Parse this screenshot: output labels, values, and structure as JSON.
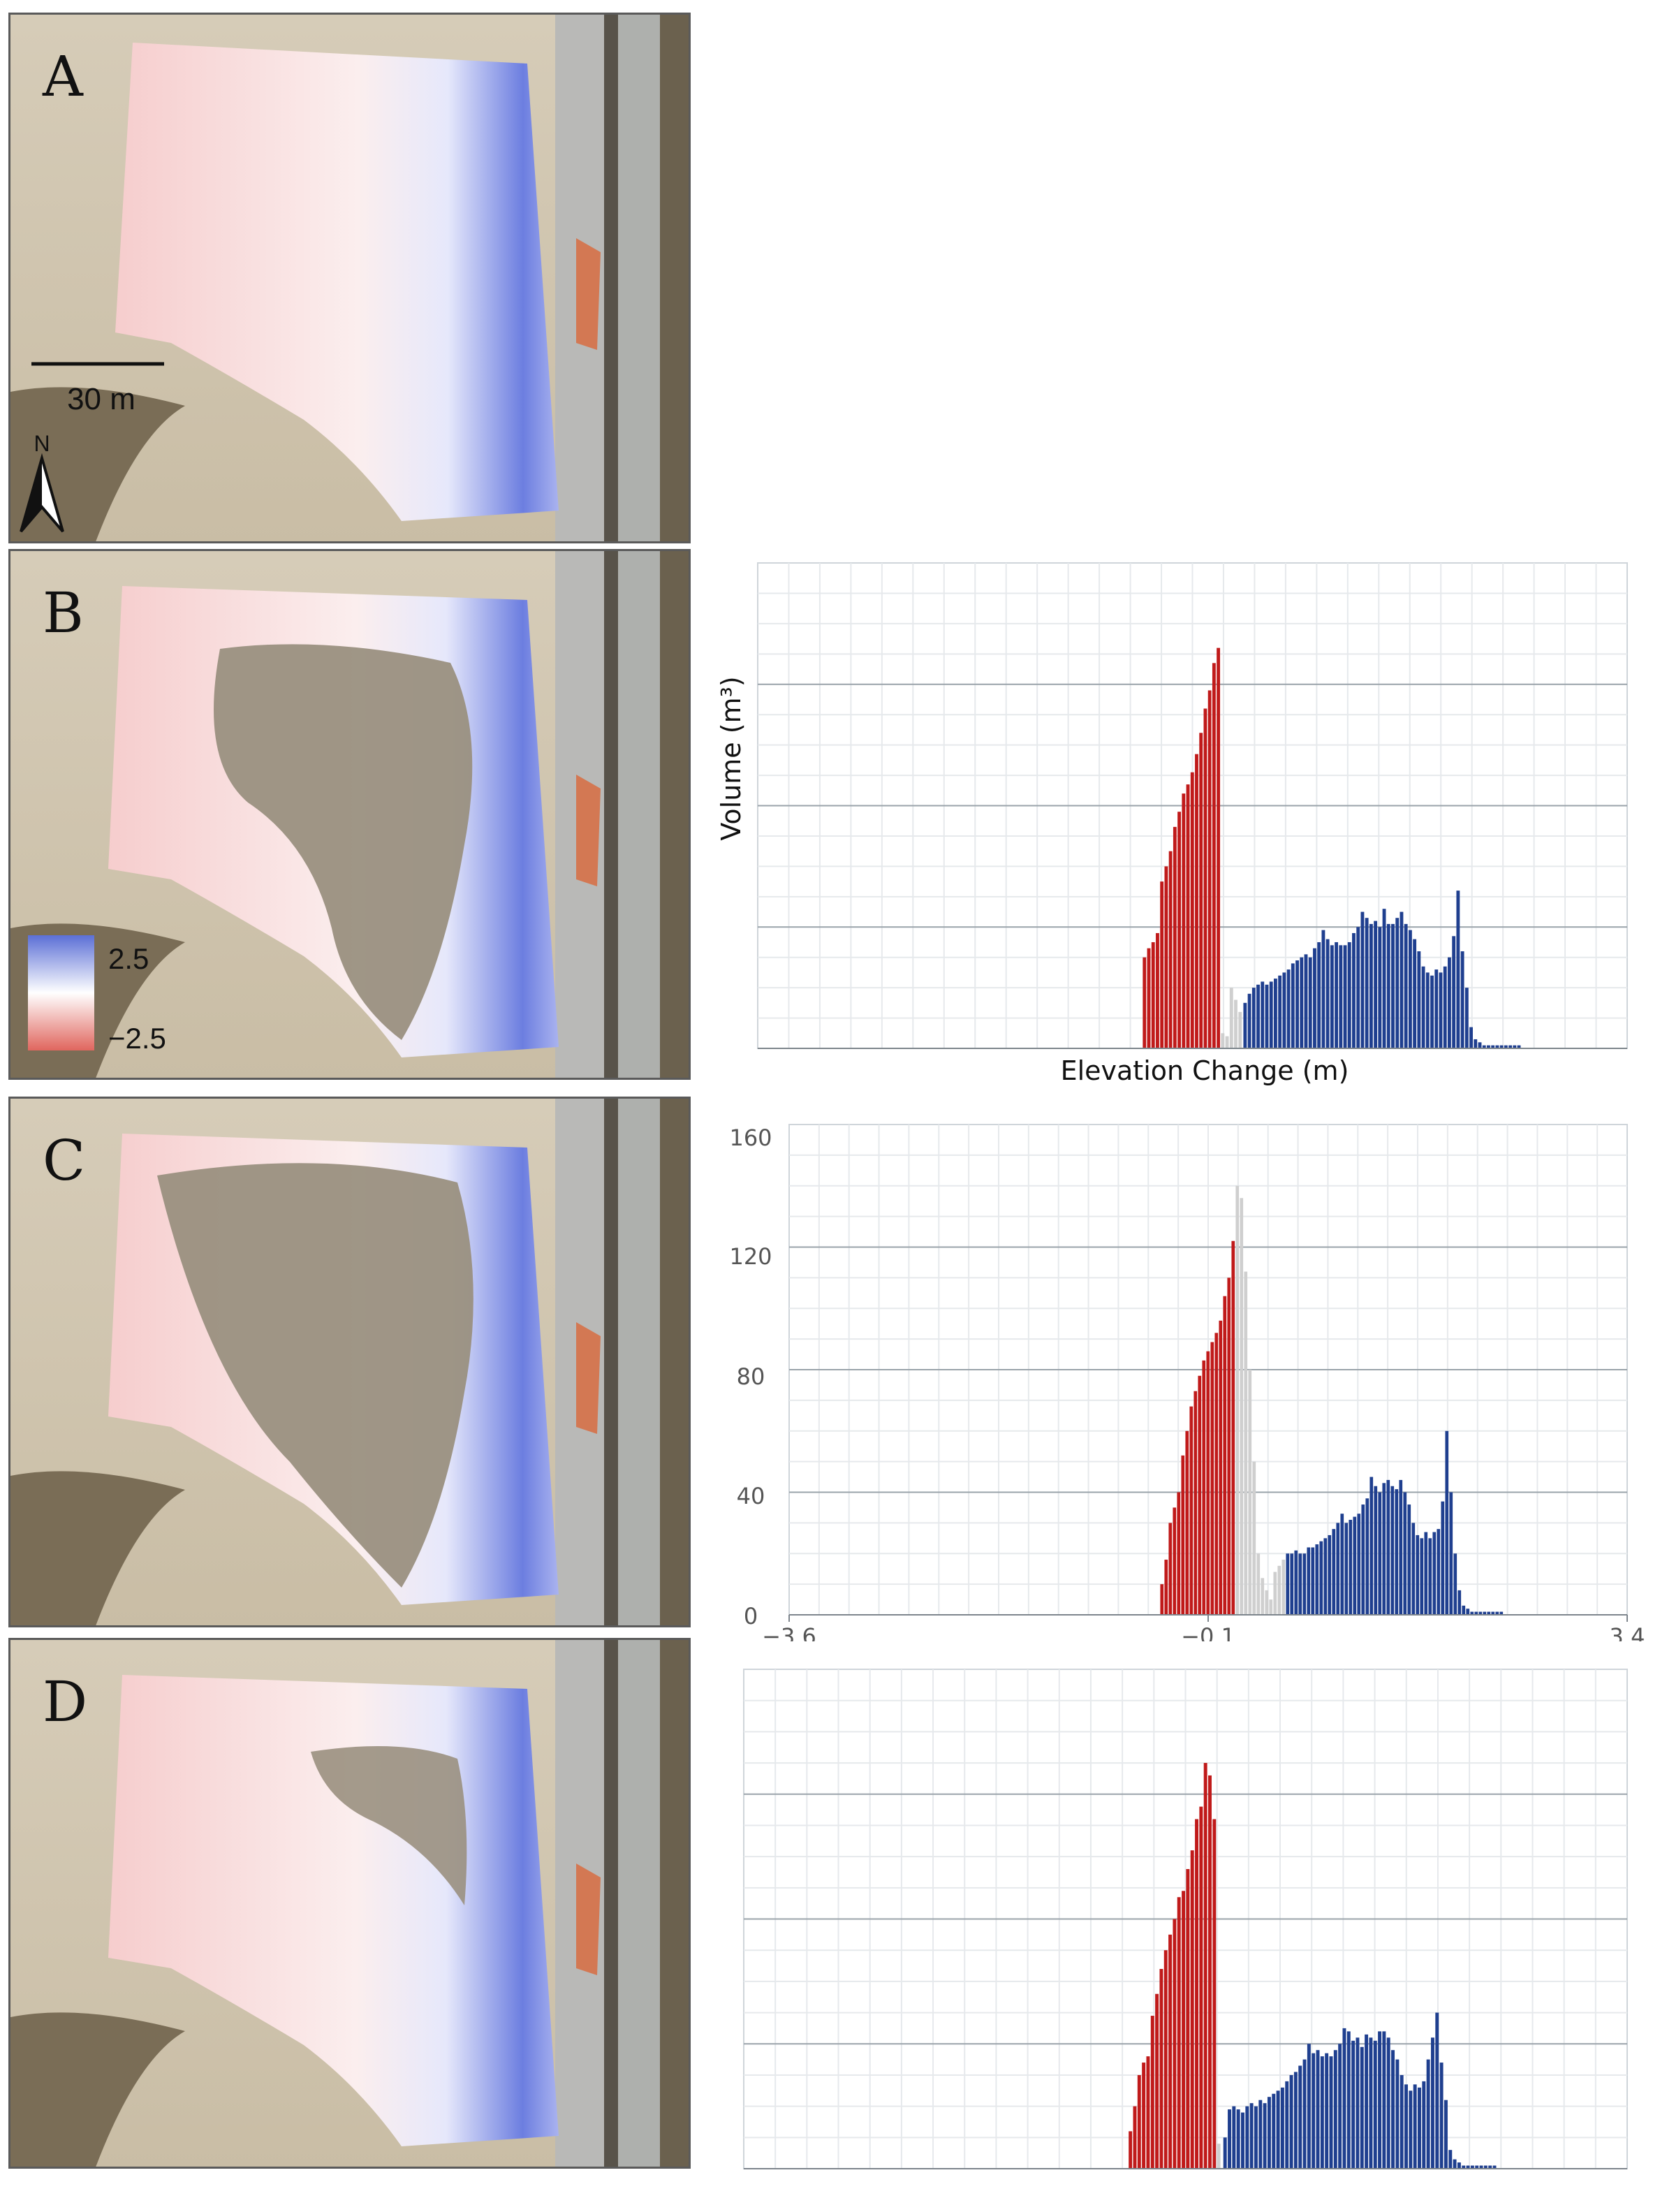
{
  "panels": [
    {
      "id": "A",
      "label": "A"
    },
    {
      "id": "B",
      "label": "B"
    },
    {
      "id": "C",
      "label": "C"
    },
    {
      "id": "D",
      "label": "D"
    }
  ],
  "scale_bar": {
    "label": "30 m"
  },
  "north_arrow": {
    "label": "N"
  },
  "colorbar": {
    "max_label": "2.5",
    "min_label": "−2.5",
    "colors": [
      "#5b6fd6",
      "#ffffff",
      "#e0665e"
    ]
  },
  "colors": {
    "erosion": "#c01a1a",
    "deposition": "#1f3f8f",
    "not_significant": "#cfcfcf",
    "grid": "#e6e9ec",
    "grid_major": "#9aa3aa"
  },
  "chart_data": [
    {
      "panel": "B",
      "type": "bar",
      "xlabel": "Elevation Change (m)",
      "ylabel": "Volume (m³)",
      "xlim": [
        -3.6,
        3.4
      ],
      "ylim": [
        0,
        160
      ],
      "bin_width": 0.035,
      "erosion": {
        "x_start": -0.5,
        "values": [
          30,
          33,
          35,
          38,
          55,
          60,
          65,
          73,
          78,
          84,
          87,
          91,
          97,
          104,
          112,
          118,
          127,
          132
        ]
      },
      "not_significant": {
        "x_start": 0.13,
        "values": [
          5,
          4,
          20,
          16,
          12
        ]
      },
      "deposition": {
        "x_start": 0.31,
        "values": [
          15,
          18,
          20,
          21,
          22,
          21,
          22,
          23,
          24,
          25,
          26,
          28,
          29,
          30,
          31,
          30,
          33,
          35,
          39,
          36,
          34,
          35,
          34,
          34,
          35,
          38,
          40,
          45,
          43,
          41,
          42,
          40,
          46,
          41,
          41,
          43,
          45,
          41,
          39,
          36,
          32,
          27,
          25,
          24,
          26,
          25,
          27,
          30,
          37,
          52,
          32,
          20,
          7,
          3,
          2,
          1,
          1,
          1,
          1,
          1,
          1,
          1,
          1,
          1
        ]
      }
    },
    {
      "panel": "C",
      "type": "bar",
      "xlim": [
        -3.6,
        3.4
      ],
      "ylim": [
        0,
        160
      ],
      "x_ticks": [
        "−3.6",
        "−0.1",
        "3.4"
      ],
      "y_ticks": [
        "0",
        "40",
        "80",
        "120",
        "160"
      ],
      "bin_width": 0.035,
      "erosion": {
        "x_start": -0.5,
        "values": [
          10,
          18,
          30,
          35,
          40,
          52,
          60,
          68,
          73,
          78,
          83,
          86,
          89,
          92,
          96,
          104,
          110,
          122
        ]
      },
      "not_significant": {
        "x_start": 0.13,
        "values": [
          140,
          136,
          112,
          80,
          50,
          20,
          12,
          8,
          5,
          14,
          16,
          18
        ]
      },
      "deposition": {
        "x_start": 0.55,
        "values": [
          20,
          20,
          21,
          20,
          20,
          22,
          22,
          23,
          24,
          25,
          26,
          28,
          30,
          33,
          30,
          31,
          32,
          33,
          36,
          38,
          45,
          42,
          40,
          43,
          44,
          42,
          41,
          44,
          40,
          36,
          30,
          26,
          25,
          27,
          25,
          27,
          28,
          37,
          60,
          40,
          20,
          8,
          3,
          2,
          1,
          1,
          1,
          1,
          1,
          1,
          1,
          1
        ]
      }
    },
    {
      "panel": "D",
      "type": "bar",
      "xlim": [
        -3.6,
        3.4
      ],
      "ylim": [
        0,
        160
      ],
      "bin_width": 0.035,
      "erosion": {
        "x_start": -0.55,
        "values": [
          12,
          20,
          30,
          34,
          36,
          49,
          56,
          64,
          70,
          75,
          80,
          87,
          89,
          96,
          102,
          112,
          116,
          130,
          126,
          112
        ]
      },
      "not_significant": {
        "x_start": 0.15,
        "values": [
          8
        ]
      },
      "deposition": {
        "x_start": 0.2,
        "values": [
          10,
          19,
          20,
          19,
          18,
          20,
          21,
          20,
          22,
          21,
          23,
          24,
          25,
          26,
          28,
          30,
          31,
          33,
          35,
          40,
          37,
          38,
          36,
          37,
          36,
          38,
          40,
          45,
          44,
          41,
          42,
          39,
          43,
          42,
          41,
          44,
          44,
          42,
          38,
          35,
          30,
          27,
          25,
          27,
          26,
          28,
          35,
          42,
          50,
          34,
          22,
          6,
          3,
          2,
          1,
          1,
          1,
          1,
          1,
          1,
          1,
          1
        ]
      }
    }
  ]
}
